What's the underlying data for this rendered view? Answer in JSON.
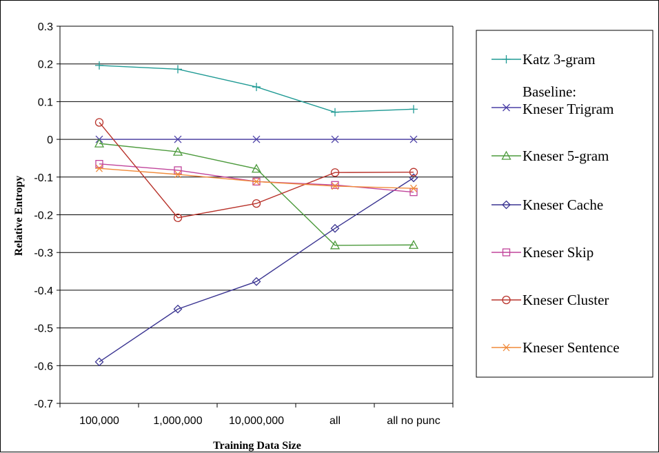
{
  "chart_data": {
    "type": "line",
    "xlabel": "Training Data Size",
    "ylabel": "Relative Entropy",
    "categories": [
      "100,000",
      "1,000,000",
      "10,000,000",
      "all",
      "all no punc"
    ],
    "ylim": [
      -0.7,
      0.3
    ],
    "yticks": [
      "0.3",
      "0.2",
      "0.1",
      "0",
      "-0.1",
      "-0.2",
      "-0.3",
      "-0.4",
      "-0.5",
      "-0.6",
      "-0.7"
    ],
    "grid": "horizontal",
    "legend_position": "right",
    "series": [
      {
        "name": "Katz 3-gram",
        "values": [
          0.196,
          0.186,
          0.139,
          0.072,
          0.08
        ],
        "color": "#1f9a94",
        "marker": "plus"
      },
      {
        "name": "Baseline: Kneser Trigram",
        "label_lines": [
          "Baseline:",
          "Kneser Trigram"
        ],
        "values": [
          0,
          0,
          0,
          0,
          0
        ],
        "color": "#4a3ea6",
        "marker": "x"
      },
      {
        "name": "Kneser 5-gram",
        "values": [
          -0.011,
          -0.033,
          -0.078,
          -0.281,
          -0.28
        ],
        "color": "#4c9a3c",
        "marker": "triangle"
      },
      {
        "name": "Kneser Cache",
        "values": [
          -0.59,
          -0.45,
          -0.377,
          -0.236,
          -0.102
        ],
        "color": "#3a3491",
        "marker": "diamond"
      },
      {
        "name": "Kneser Skip",
        "values": [
          -0.065,
          -0.082,
          -0.112,
          -0.121,
          -0.14
        ],
        "color": "#c0439a",
        "marker": "square"
      },
      {
        "name": "Kneser Cluster",
        "values": [
          0.045,
          -0.208,
          -0.17,
          -0.088,
          -0.087
        ],
        "color": "#b8322a",
        "marker": "circle"
      },
      {
        "name": "Kneser Sentence",
        "values": [
          -0.077,
          -0.093,
          -0.112,
          -0.124,
          -0.13
        ],
        "color": "#f08a3a",
        "marker": "asterisk"
      }
    ]
  }
}
